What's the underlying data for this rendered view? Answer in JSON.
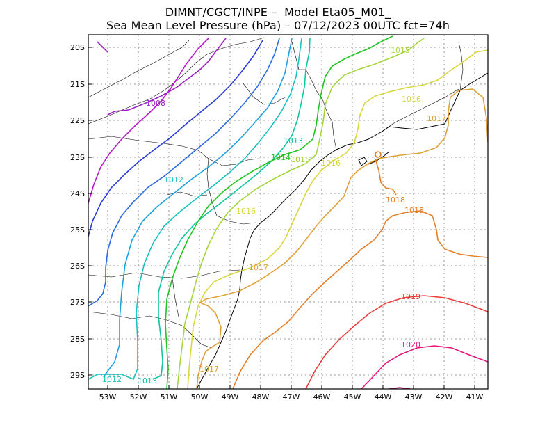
{
  "title_line1": "DIMNT/CGCT/INPE –  Model Eta05_M01_",
  "title_line2": "Sea Mean Level Pressure (hPa) – 07/12/2023 00UTC fct=74h",
  "y_ticks": [
    "20S",
    "21S",
    "22S",
    "23S",
    "24S",
    "25S",
    "26S",
    "27S",
    "28S",
    "29S"
  ],
  "x_ticks": [
    "53W",
    "52W",
    "51W",
    "50W",
    "49W",
    "48W",
    "47W",
    "46W",
    "45W",
    "44W",
    "43W",
    "42W",
    "41W"
  ],
  "contour_labels": [
    {
      "text": "1008",
      "color": "#9a1fc4"
    },
    {
      "text": "1012",
      "color": "#18c0c0"
    },
    {
      "text": "1013",
      "color": "#12c4a0"
    },
    {
      "text": "1014",
      "color": "#1fc41f"
    },
    {
      "text": "1015",
      "color": "#a3d63a"
    },
    {
      "text": "1015",
      "color": "#a3d63a"
    },
    {
      "text": "1016",
      "color": "#d9d640"
    },
    {
      "text": "1016",
      "color": "#d9d640"
    },
    {
      "text": "1016",
      "color": "#d9d640"
    },
    {
      "text": "1017",
      "color": "#e0a035"
    },
    {
      "text": "1017",
      "color": "#e0a035"
    },
    {
      "text": "1017",
      "color": "#e0a035"
    },
    {
      "text": "1018",
      "color": "#e6802a"
    },
    {
      "text": "1018",
      "color": "#e6802a"
    },
    {
      "text": "1019",
      "color": "#ec3c3c"
    },
    {
      "text": "1020",
      "color": "#e8127a"
    },
    {
      "text": "1012",
      "color": "#18c0c0"
    },
    {
      "text": "1013",
      "color": "#12c4a0"
    }
  ]
}
